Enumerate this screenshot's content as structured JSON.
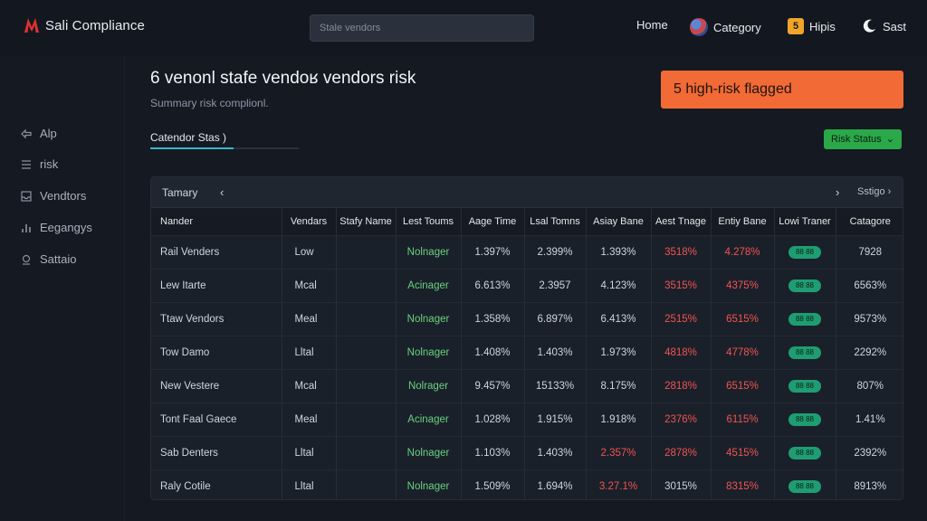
{
  "app": {
    "title": "Sali Compliance"
  },
  "search": {
    "placeholder": "Stale vendors"
  },
  "topnav": {
    "home": "Home",
    "category": "Category",
    "help": "Hipis",
    "help_badge": "5",
    "sast": "Sast"
  },
  "sidebar": {
    "items": [
      {
        "label": "Alp",
        "icon": "flow-icon"
      },
      {
        "label": "risk",
        "icon": "list-icon"
      },
      {
        "label": "Vendtors",
        "icon": "inbox-icon"
      },
      {
        "label": "Eegangys",
        "icon": "chart-icon"
      },
      {
        "label": "Sattaio",
        "icon": "gear-icon"
      }
    ]
  },
  "main": {
    "title": "6 venonl stafe vendoʁ vendors risk",
    "subtitle": "Summary risk complionl.",
    "risk_banner": "5 high-risk flagged",
    "tab_label": "Catendor Stas )",
    "status_button": "Risk Status"
  },
  "table": {
    "header_label": "Tamary",
    "header_right": "Sstigo",
    "columns": [
      "Nander",
      "Vendars",
      "Stafy Name",
      "Lest Toums",
      "Aage Time",
      "Lsal Tomns",
      "Asiay Bane",
      "Aest Tnage",
      "Entiy Bane",
      "Lowi Traner",
      "Catagore"
    ],
    "rows": [
      [
        "Rail Venders",
        "Low",
        "",
        "Nolnager",
        "1.397%",
        "2.399%",
        "1.393%",
        "3518%",
        "4.278%",
        "",
        "7928"
      ],
      [
        "Lew Itarte",
        "Mcal",
        "",
        "Acinager",
        "6.613%",
        "2.3957",
        "4.123%",
        "3515%",
        "4375%",
        "",
        "6563%"
      ],
      [
        "Ttaw Vendors",
        "Meal",
        "",
        "Nolnager",
        "1.358%",
        "6.897%",
        "6.413%",
        "2515%",
        "6515%",
        "",
        "9573%"
      ],
      [
        "Tow Damo",
        "Lltal",
        "",
        "Nolnager",
        "1.408%",
        "1.403%",
        "1.973%",
        "4818%",
        "4778%",
        "",
        "2292%"
      ],
      [
        "New Vestere",
        "Mcal",
        "",
        "Nolrager",
        "9.457%",
        "15133%",
        "8.175%",
        "2818%",
        "6515%",
        "",
        "807%"
      ],
      [
        "Tont Faal Gaece",
        "Meal",
        "",
        "Acinager",
        "1.028%",
        "1.915%",
        "1.918%",
        "2376%",
        "6115%",
        "",
        "1.41%"
      ],
      [
        "Sab Denters",
        "Lltal",
        "",
        "Nolnager",
        "1.103%",
        "1.403%",
        "2.357%",
        "2878%",
        "4515%",
        "",
        "2392%"
      ],
      [
        "Raly Cotile",
        "Lltal",
        "",
        "Nolnager",
        "1.509%",
        "1.694%",
        "3.27.1%",
        "3015%",
        "8315%",
        "",
        "8913%"
      ]
    ],
    "pill_label": "88 88",
    "red_cells": [
      [
        0,
        7
      ],
      [
        0,
        8
      ],
      [
        1,
        7
      ],
      [
        1,
        8
      ],
      [
        2,
        7
      ],
      [
        2,
        8
      ],
      [
        3,
        7
      ],
      [
        3,
        8
      ],
      [
        4,
        7
      ],
      [
        4,
        8
      ],
      [
        5,
        7
      ],
      [
        5,
        8
      ],
      [
        6,
        6
      ],
      [
        6,
        7
      ],
      [
        6,
        8
      ],
      [
        7,
        6
      ],
      [
        7,
        8
      ]
    ]
  },
  "colors": {
    "background": "#141922",
    "risk_banner": "#f26a35",
    "status_button": "#2aa84a",
    "accent_tab": "#3db3c9",
    "pill": "#1f9d72",
    "danger": "#f05353",
    "success": "#69d182"
  }
}
